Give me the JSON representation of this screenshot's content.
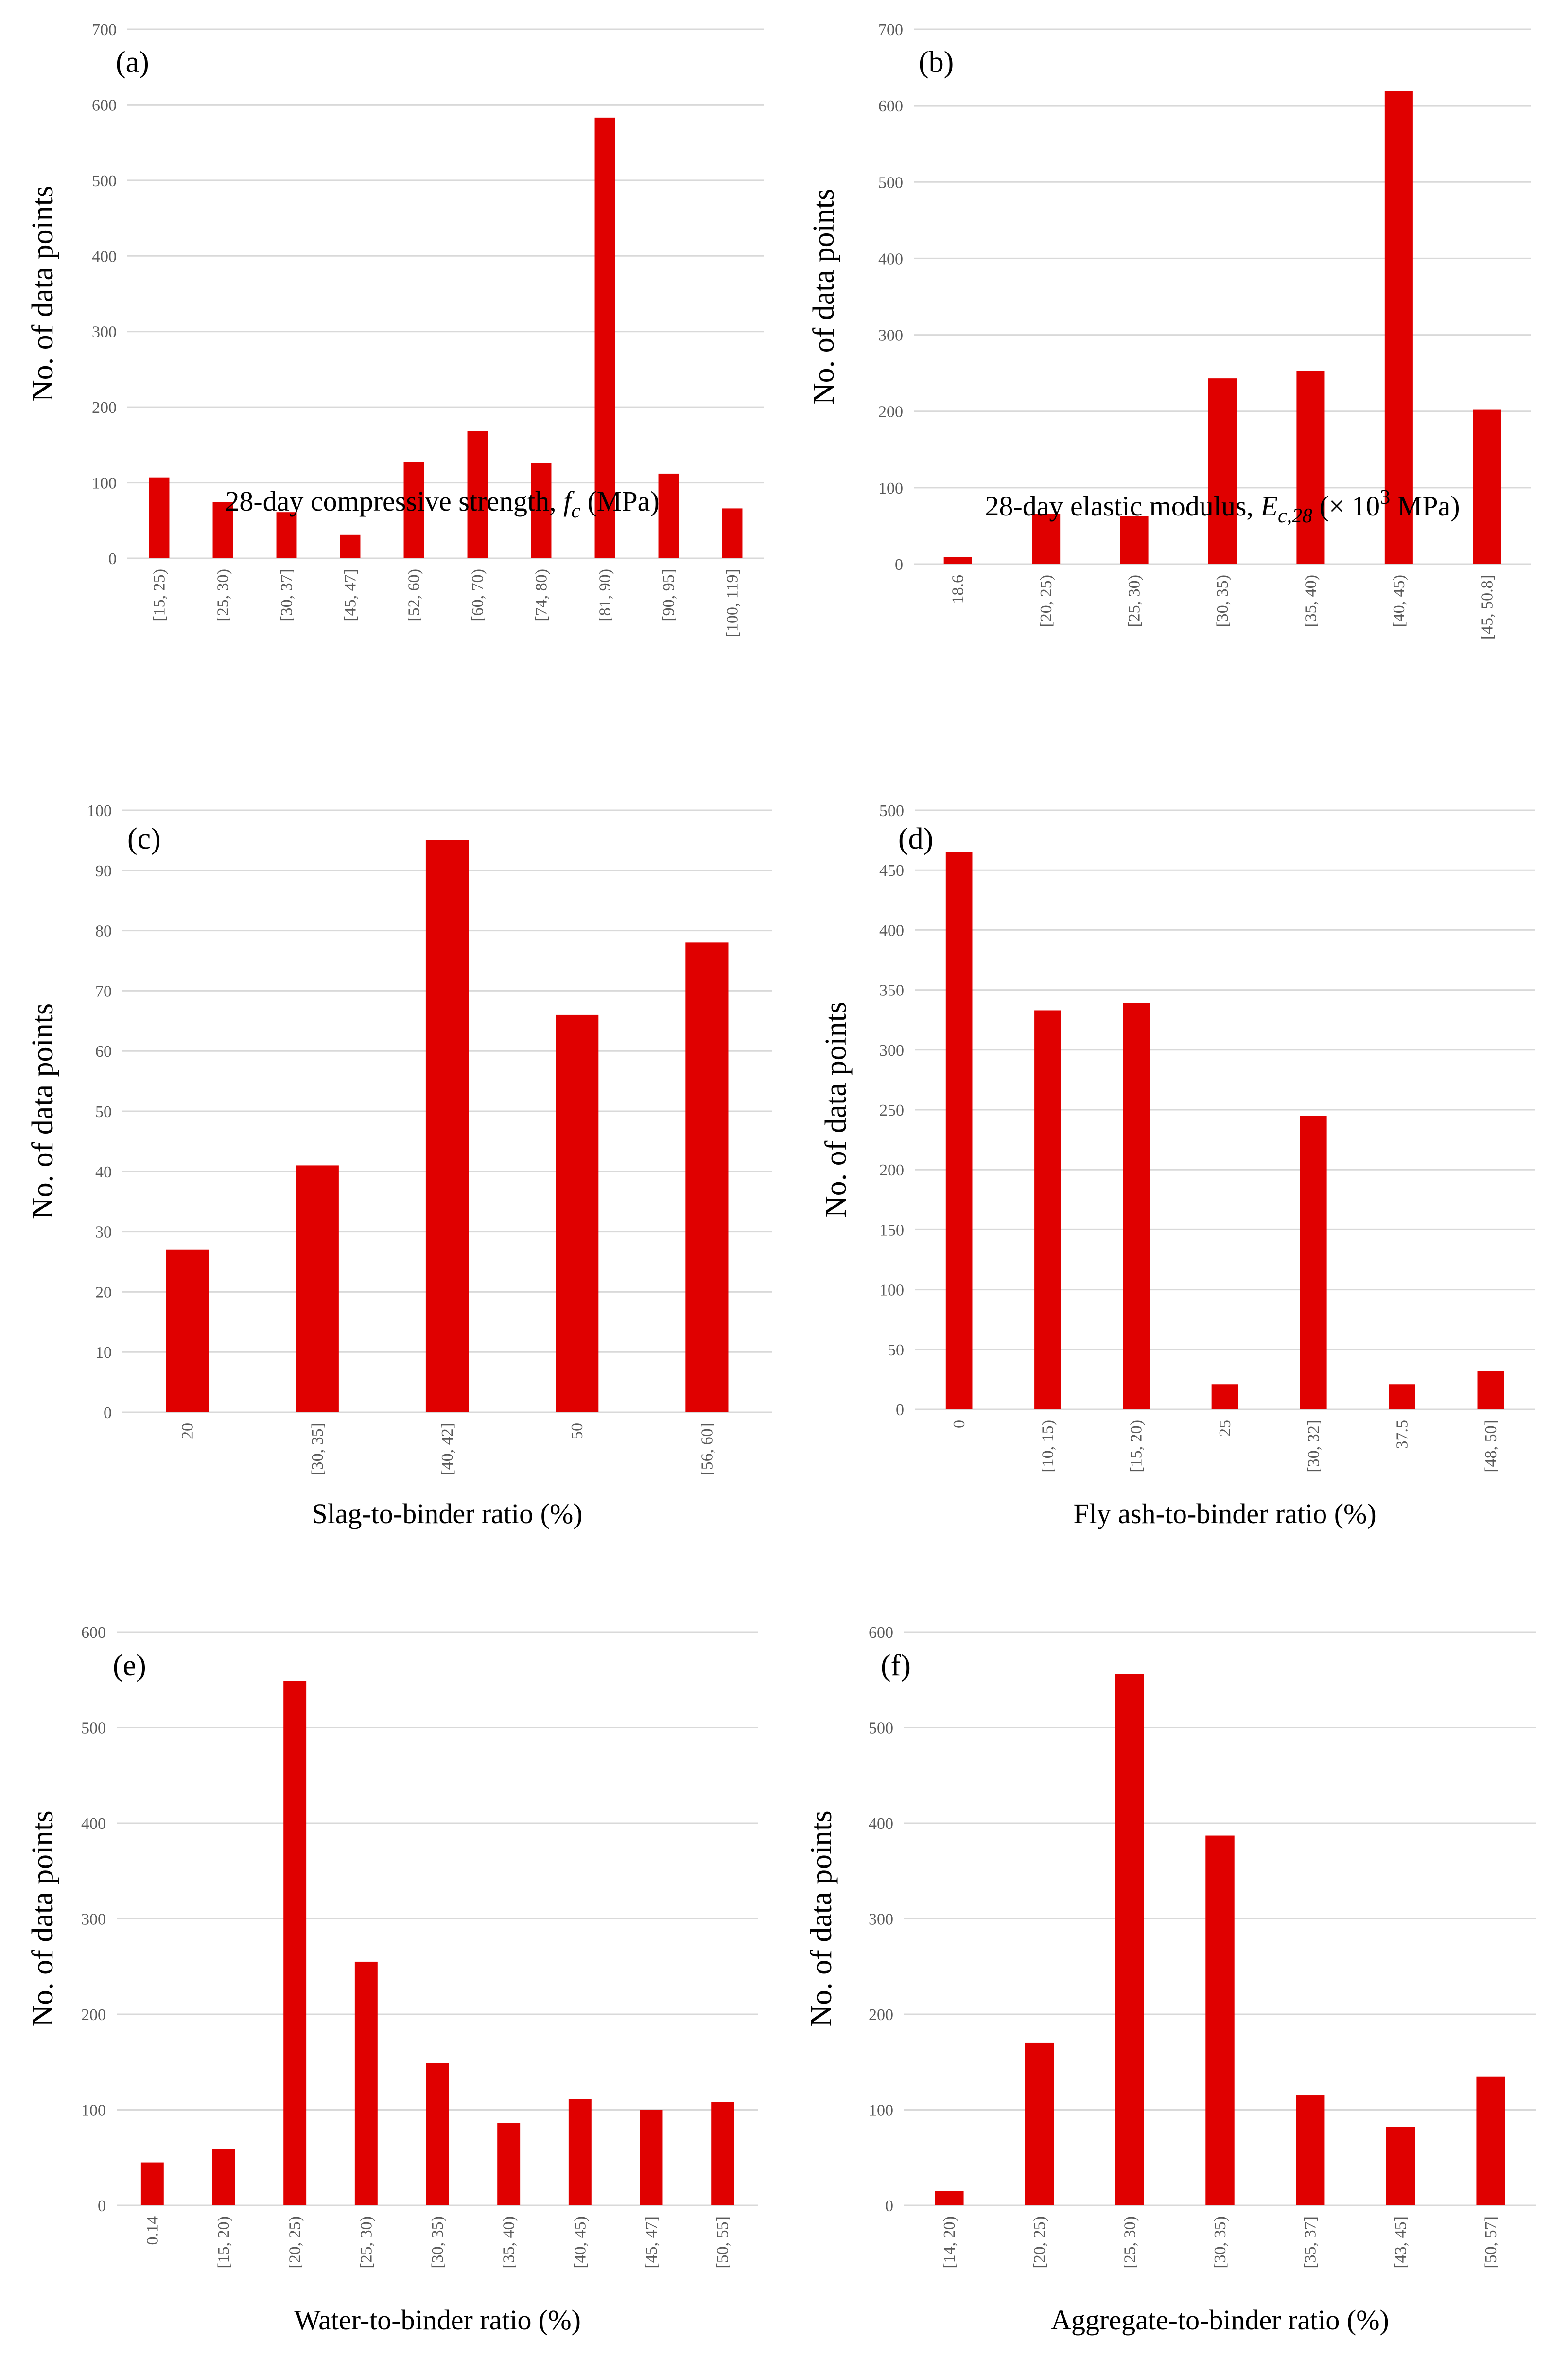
{
  "chart_data": [
    {
      "type": "bar",
      "panel_label": "(a)",
      "ylabel": "No. of data points",
      "xlabel_parts": [
        "28-day compressive strength, ",
        "f",
        "c",
        " (MPa)"
      ],
      "categories": [
        "[15, 25)",
        "[25, 30)",
        "[30, 37]",
        "[45, 47]",
        "[52, 60)",
        "[60, 70)",
        "[74, 80)",
        "[81, 90)",
        "[90, 95]",
        "[100, 119]"
      ],
      "values": [
        107,
        74,
        61,
        31,
        127,
        168,
        126,
        583,
        112,
        66
      ],
      "yticks": [
        "0",
        "100",
        "200",
        "300",
        "400",
        "500",
        "600",
        "700"
      ],
      "ylim": [
        0,
        700
      ],
      "color": "#e00000"
    },
    {
      "type": "bar",
      "panel_label": "(b)",
      "ylabel": "No. of data points",
      "xlabel_parts": [
        "28-day elastic modulus, ",
        "E",
        "c,28",
        " (× 10",
        "3",
        " MPa)"
      ],
      "categories": [
        "18.6",
        "[20, 25)",
        "[25, 30)",
        "[30, 35)",
        "[35, 40)",
        "[40, 45)",
        "[45, 50.8]"
      ],
      "values": [
        9,
        66,
        63,
        243,
        253,
        619,
        202
      ],
      "yticks": [
        "0",
        "100",
        "200",
        "300",
        "400",
        "500",
        "600",
        "700"
      ],
      "ylim": [
        0,
        700
      ],
      "color": "#e00000"
    },
    {
      "type": "bar",
      "panel_label": "(c)",
      "ylabel": "No. of data points",
      "xlabel_parts": [
        "Slag-to-binder ratio (%)"
      ],
      "categories": [
        "20",
        "[30, 35]",
        "[40, 42]",
        "50",
        "[56, 60]"
      ],
      "values": [
        27,
        41,
        95,
        66,
        78
      ],
      "yticks": [
        "0",
        "10",
        "20",
        "30",
        "40",
        "50",
        "60",
        "70",
        "80",
        "90",
        "100"
      ],
      "ylim": [
        0,
        100
      ],
      "color": "#e00000"
    },
    {
      "type": "bar",
      "panel_label": "(d)",
      "ylabel": "No. of data points",
      "xlabel_parts": [
        "Fly ash-to-binder ratio (%)"
      ],
      "categories": [
        "0",
        "[10, 15)",
        "[15, 20)",
        "25",
        "[30, 32]",
        "37.5",
        "[48, 50]"
      ],
      "values": [
        465,
        333,
        339,
        21,
        245,
        21,
        32
      ],
      "yticks": [
        "0",
        "50",
        "100",
        "150",
        "200",
        "250",
        "300",
        "350",
        "400",
        "450",
        "500"
      ],
      "ylim": [
        0,
        500
      ],
      "color": "#e00000"
    },
    {
      "type": "bar",
      "panel_label": "(e)",
      "ylabel": "No. of data points",
      "xlabel_parts": [
        "Water-to-binder ratio (%)"
      ],
      "categories": [
        "0.14",
        "[15, 20)",
        "[20, 25)",
        "[25, 30)",
        "[30, 35)",
        "[35, 40)",
        "[40, 45)",
        "[45, 47]",
        "[50, 55]"
      ],
      "values": [
        45,
        59,
        549,
        255,
        149,
        86,
        111,
        100,
        108
      ],
      "yticks": [
        "0",
        "100",
        "200",
        "300",
        "400",
        "500",
        "600"
      ],
      "ylim": [
        0,
        600
      ],
      "color": "#e00000"
    },
    {
      "type": "bar",
      "panel_label": "(f)",
      "ylabel": "No. of data points",
      "xlabel_parts": [
        "Aggregate-to-binder ratio (%)"
      ],
      "categories": [
        "[14, 20)",
        "[20, 25)",
        "[25, 30)",
        "[30, 35)",
        "[35, 37]",
        "[43, 45]",
        "[50, 57]"
      ],
      "values": [
        15,
        170,
        556,
        387,
        115,
        82,
        135
      ],
      "yticks": [
        "0",
        "100",
        "200",
        "300",
        "400",
        "500",
        "600"
      ],
      "ylim": [
        0,
        600
      ],
      "color": "#e00000"
    }
  ]
}
